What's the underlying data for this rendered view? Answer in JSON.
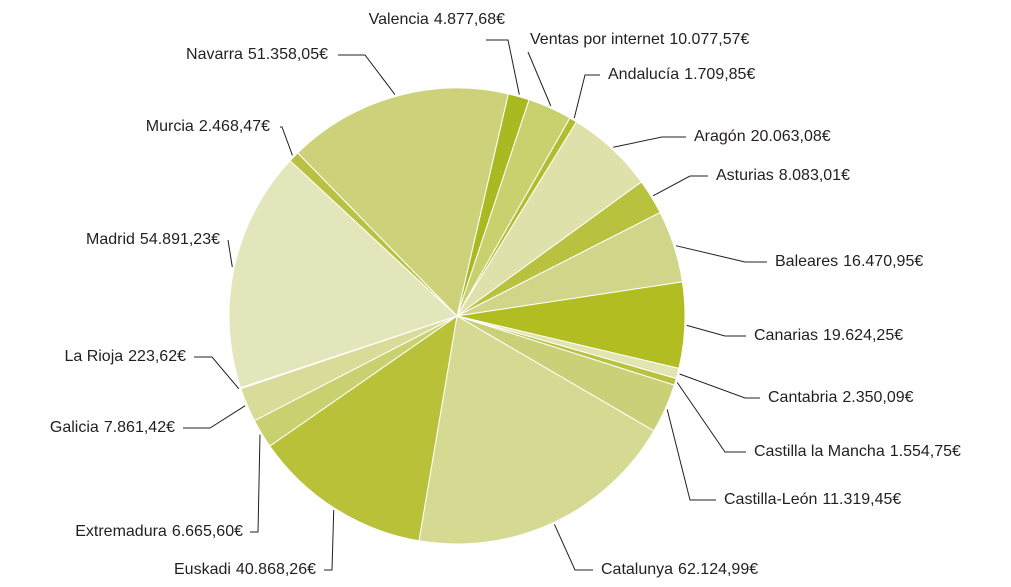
{
  "chart_data": {
    "type": "pie",
    "categories": [
      "Valencia",
      "Ventas por internet",
      "Andalucía",
      "Aragón",
      "Asturias",
      "Baleares",
      "Canarias",
      "Cantabria",
      "Castilla la Mancha",
      "Castilla-León",
      "Catalunya",
      "Euskadi",
      "Extremadura",
      "Galicia",
      "La Rioja",
      "Madrid",
      "Murcia",
      "Navarra"
    ],
    "values": [
      4877.68,
      10077.57,
      1709.85,
      20063.08,
      8083.01,
      16470.95,
      19624.25,
      2350.09,
      1554.75,
      11319.45,
      62124.99,
      40868.26,
      6665.6,
      7861.42,
      223.62,
      54891.23,
      2468.47,
      51358.05
    ],
    "value_labels": [
      "4.877,68€",
      "10.077,57€",
      "1.709,85€",
      "20.063,08€",
      "8.083,01€",
      "16.470,95€",
      "19.624,25€",
      "2.350,09€",
      "1.554,75€",
      "11.319,45€",
      "62.124,99€",
      "40.868,26€",
      "6.665,60€",
      "7.861,42€",
      "223,62€",
      "54.891,23€",
      "2.468,47€",
      "51.358,05€"
    ],
    "colors": [
      "#a9b922",
      "#c9d06e",
      "#b2bd2e",
      "#dee1a9",
      "#b9c23f",
      "#d1d589",
      "#b1bd20",
      "#e1e5b2",
      "#b9c23f",
      "#c9d078",
      "#d5d992",
      "#b9c138",
      "#c9d070",
      "#d9dc99",
      "#b1bd30",
      "#e3e6ba",
      "#b9c240",
      "#cdd27a"
    ]
  }
}
